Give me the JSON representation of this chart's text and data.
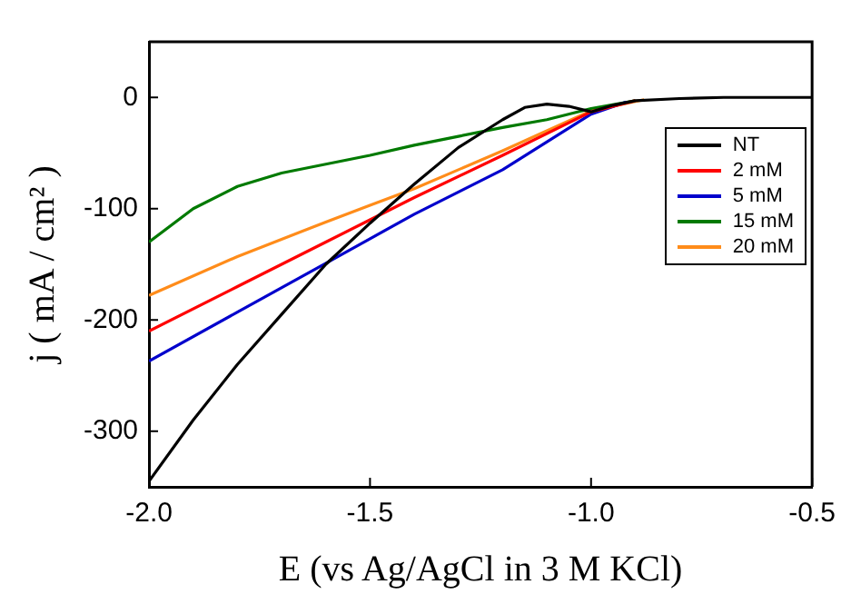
{
  "chart_data": {
    "type": "line",
    "xlabel": "E (vs Ag/AgCl in 3 M KCl)",
    "ylabel": "j ( mA / cm² )",
    "xlim": [
      -2.0,
      -0.5
    ],
    "xticks": [
      {
        "value": -2.0,
        "label": "-2.0"
      },
      {
        "value": -1.5,
        "label": "-1.5"
      },
      {
        "value": -1.0,
        "label": "-1.0"
      },
      {
        "value": -0.5,
        "label": "-0.5"
      }
    ],
    "ylim": [
      -350,
      50
    ],
    "yticks": [
      -300,
      -200,
      -100,
      0
    ],
    "grid": false,
    "legend": "top right",
    "marker": "none",
    "line_style": "solid",
    "series": [
      {
        "name": "NT",
        "color": "#000000",
        "x": [
          -2.0,
          -1.9,
          -1.8,
          -1.7,
          -1.6,
          -1.5,
          -1.4,
          -1.3,
          -1.2,
          -1.15,
          -1.1,
          -1.05,
          -1.0,
          -0.95,
          -0.9,
          -0.8,
          -0.7,
          -0.5
        ],
        "values": [
          -345,
          -290,
          -240,
          -195,
          -150,
          -113,
          -78,
          -45,
          -20,
          -9,
          -6,
          -8,
          -13,
          -7,
          -3,
          -1,
          0,
          0
        ]
      },
      {
        "name": "2 mM",
        "color": "#ff0000",
        "x": [
          -2.0,
          -1.8,
          -1.6,
          -1.5,
          -1.4,
          -1.2,
          -1.0,
          -0.9
        ],
        "values": [
          -210,
          -170,
          -130,
          -110,
          -90,
          -52,
          -13,
          -3
        ]
      },
      {
        "name": "5 mM",
        "color": "#0000cc",
        "x": [
          -2.0,
          -1.8,
          -1.6,
          -1.5,
          -1.4,
          -1.2,
          -1.0,
          -0.92
        ],
        "values": [
          -237,
          -193,
          -149,
          -127,
          -105,
          -65,
          -15,
          -4
        ]
      },
      {
        "name": "15 mM",
        "color": "#007a00",
        "x": [
          -2.0,
          -1.9,
          -1.8,
          -1.7,
          -1.6,
          -1.5,
          -1.4,
          -1.3,
          -1.2,
          -1.1,
          -1.0,
          -0.9
        ],
        "values": [
          -130,
          -100,
          -80,
          -68,
          -60,
          -52,
          -43,
          -35,
          -27,
          -20,
          -10,
          -3
        ]
      },
      {
        "name": "20 mM",
        "color": "#ff8c1a",
        "x": [
          -2.0,
          -1.8,
          -1.6,
          -1.5,
          -1.4,
          -1.2,
          -1.0,
          -0.88
        ],
        "values": [
          -178,
          -143,
          -112,
          -97,
          -82,
          -48,
          -12,
          -2
        ]
      }
    ]
  }
}
